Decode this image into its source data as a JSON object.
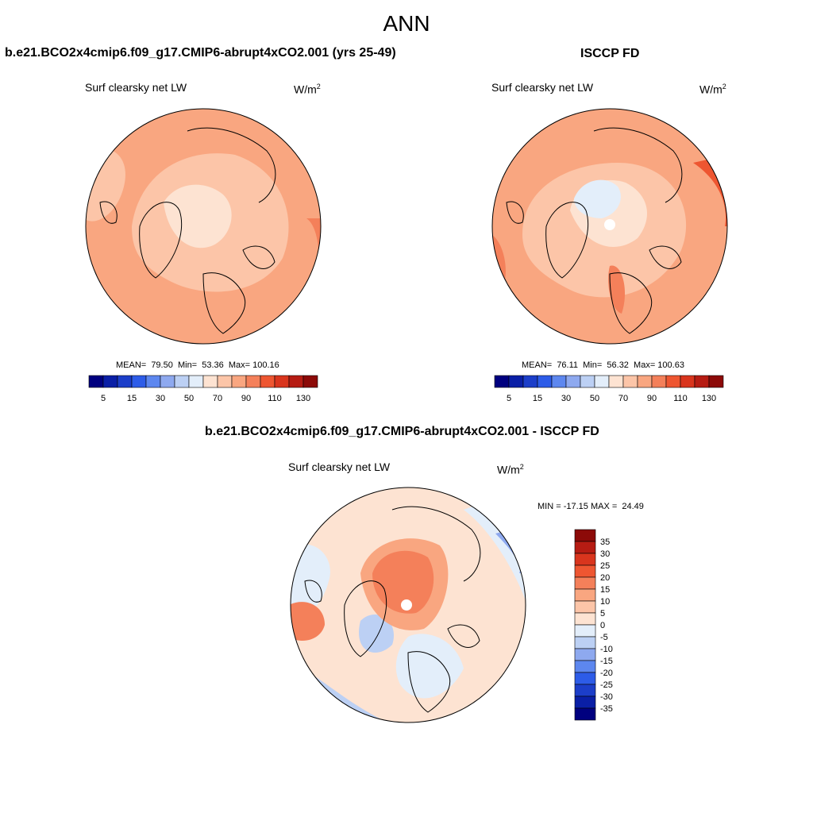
{
  "title": "ANN",
  "panels": [
    {
      "id": "model",
      "heading": "b.e21.BCO2x4cmip6.f09_g17.CMIP6-abrupt4xCO2.001 (yrs 25-49)",
      "variable": "Surf clearsky net LW",
      "units_base": "W/m",
      "units_exp": "2",
      "stats_text": "MEAN=  79.50  Min=  53.36  Max= 100.16"
    },
    {
      "id": "obs",
      "heading": "ISCCP FD",
      "variable": "Surf clearsky net LW",
      "units_base": "W/m",
      "units_exp": "2",
      "stats_text": "MEAN=  76.11  Min=  56.32  Max= 100.63"
    },
    {
      "id": "diff",
      "heading": "b.e21.BCO2x4cmip6.f09_g17.CMIP6-abrupt4xCO2.001 - ISCCP FD",
      "variable": "Surf clearsky net LW",
      "units_base": "W/m",
      "units_exp": "2",
      "stats_text": "MIN = -17.15 MAX =  24.49"
    }
  ],
  "chart_data": [
    {
      "type": "polar-contour-map",
      "panel": "model",
      "projection": "north polar stereographic",
      "variable": "Surf clearsky net LW",
      "units": "W/m2",
      "mean": 79.5,
      "min": 53.36,
      "max": 100.16,
      "colorbar": {
        "orientation": "horizontal",
        "levels": [
          5,
          10,
          15,
          20,
          30,
          40,
          50,
          60,
          70,
          80,
          90,
          100,
          110,
          120,
          130
        ],
        "tick_labels": [
          "5",
          "15",
          "30",
          "50",
          "70",
          "90",
          "110",
          "130"
        ],
        "colors": [
          "#00007f",
          "#0a1fa6",
          "#1c3ec9",
          "#2d5ce8",
          "#5d87ef",
          "#8ea9ef",
          "#bcd0f4",
          "#e3eefa",
          "#fde3d2",
          "#fcc5a8",
          "#f9a680",
          "#f4805a",
          "#ee5631",
          "#d9351d",
          "#b61c13",
          "#8c0a08"
        ]
      }
    },
    {
      "type": "polar-contour-map",
      "panel": "obs",
      "projection": "north polar stereographic",
      "variable": "Surf clearsky net LW",
      "units": "W/m2",
      "mean": 76.11,
      "min": 56.32,
      "max": 100.63,
      "colorbar": {
        "orientation": "horizontal",
        "levels": [
          5,
          10,
          15,
          20,
          30,
          40,
          50,
          60,
          70,
          80,
          90,
          100,
          110,
          120,
          130
        ],
        "tick_labels": [
          "5",
          "15",
          "30",
          "50",
          "70",
          "90",
          "110",
          "130"
        ],
        "colors": [
          "#00007f",
          "#0a1fa6",
          "#1c3ec9",
          "#2d5ce8",
          "#5d87ef",
          "#8ea9ef",
          "#bcd0f4",
          "#e3eefa",
          "#fde3d2",
          "#fcc5a8",
          "#f9a680",
          "#f4805a",
          "#ee5631",
          "#d9351d",
          "#b61c13",
          "#8c0a08"
        ]
      }
    },
    {
      "type": "polar-contour-map",
      "panel": "diff",
      "projection": "north polar stereographic",
      "variable": "Surf clearsky net LW",
      "units": "W/m2",
      "min": -17.15,
      "max": 24.49,
      "colorbar": {
        "orientation": "vertical",
        "levels": [
          35,
          30,
          25,
          20,
          15,
          10,
          5,
          0,
          -5,
          -10,
          -15,
          -20,
          -25,
          -30,
          -35
        ],
        "tick_labels": [
          "35",
          "30",
          "25",
          "20",
          "15",
          "10",
          "5",
          "0",
          "-5",
          "-10",
          "-15",
          "-20",
          "-25",
          "-30",
          "-35"
        ],
        "colors": [
          "#8c0a08",
          "#b61c13",
          "#d9351d",
          "#ee5631",
          "#f4805a",
          "#f9a680",
          "#fcc5a8",
          "#fde3d2",
          "#e3eefa",
          "#bcd0f4",
          "#8ea9ef",
          "#5d87ef",
          "#2d5ce8",
          "#1c3ec9",
          "#0a1fa6",
          "#00007f"
        ]
      }
    }
  ]
}
